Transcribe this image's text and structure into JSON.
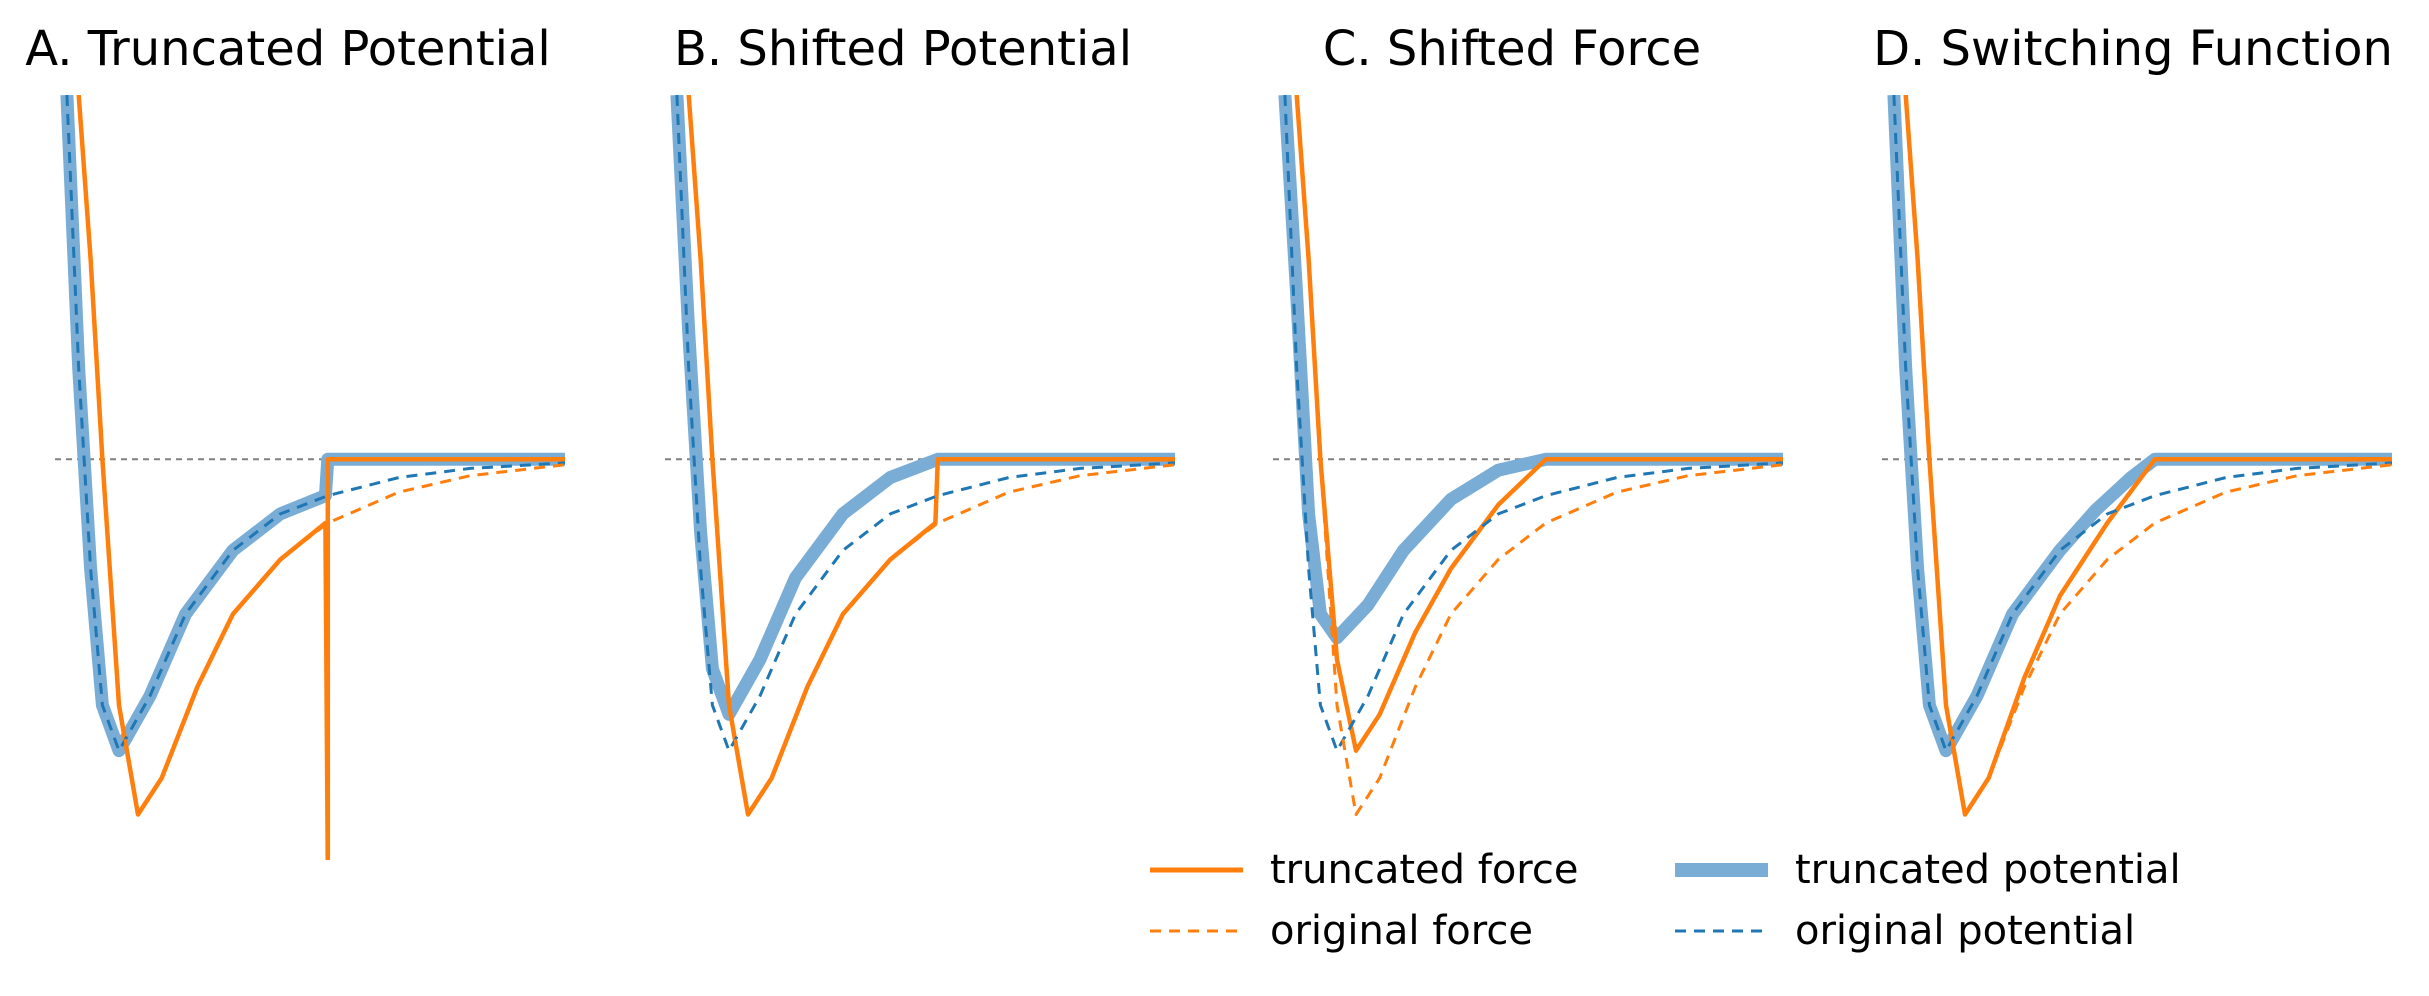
{
  "chart_data": [
    {
      "type": "line",
      "title": "A. Truncated Potential",
      "xlabel": "",
      "ylabel": "",
      "xlim": [
        0.85,
        3.0
      ],
      "ylim": [
        -2.2,
        2.0
      ],
      "cutoff": 2.0,
      "series": [
        {
          "name": "truncated force",
          "key": "truncated_force",
          "values": [
            [
              0.95,
              2.0
            ],
            [
              1.0,
              1.1
            ],
            [
              1.05,
              0.0
            ],
            [
              1.12,
              -1.35
            ],
            [
              1.2,
              -1.95
            ],
            [
              1.3,
              -1.75
            ],
            [
              1.45,
              -1.25
            ],
            [
              1.6,
              -0.85
            ],
            [
              1.8,
              -0.55
            ],
            [
              1.99,
              -0.35
            ],
            [
              2.0,
              -2.25
            ],
            [
              2.0,
              0.0
            ],
            [
              3.0,
              0.0
            ]
          ]
        },
        {
          "name": "original force",
          "key": "original_force",
          "values": [
            [
              0.95,
              2.0
            ],
            [
              1.0,
              1.1
            ],
            [
              1.05,
              0.0
            ],
            [
              1.12,
              -1.35
            ],
            [
              1.2,
              -1.95
            ],
            [
              1.3,
              -1.75
            ],
            [
              1.45,
              -1.25
            ],
            [
              1.6,
              -0.85
            ],
            [
              1.8,
              -0.55
            ],
            [
              2.0,
              -0.35
            ],
            [
              2.3,
              -0.18
            ],
            [
              2.6,
              -0.09
            ],
            [
              3.0,
              -0.03
            ]
          ]
        },
        {
          "name": "truncated potential",
          "key": "truncated_potential",
          "values": [
            [
              0.9,
              2.0
            ],
            [
              0.95,
              0.5
            ],
            [
              1.0,
              -0.6
            ],
            [
              1.05,
              -1.35
            ],
            [
              1.12,
              -1.6
            ],
            [
              1.25,
              -1.3
            ],
            [
              1.4,
              -0.85
            ],
            [
              1.6,
              -0.5
            ],
            [
              1.8,
              -0.3
            ],
            [
              1.99,
              -0.2
            ],
            [
              2.0,
              0.0
            ],
            [
              3.0,
              0.0
            ]
          ]
        },
        {
          "name": "original potential",
          "key": "original_potential",
          "values": [
            [
              0.9,
              2.0
            ],
            [
              0.95,
              0.5
            ],
            [
              1.0,
              -0.6
            ],
            [
              1.05,
              -1.35
            ],
            [
              1.12,
              -1.6
            ],
            [
              1.25,
              -1.3
            ],
            [
              1.4,
              -0.85
            ],
            [
              1.6,
              -0.5
            ],
            [
              1.8,
              -0.3
            ],
            [
              2.0,
              -0.2
            ],
            [
              2.3,
              -0.1
            ],
            [
              2.6,
              -0.05
            ],
            [
              3.0,
              -0.02
            ]
          ]
        }
      ]
    },
    {
      "type": "line",
      "title": "B. Shifted Potential",
      "xlabel": "",
      "ylabel": "",
      "xlim": [
        0.85,
        3.0
      ],
      "ylim": [
        -2.2,
        2.0
      ],
      "cutoff": 2.0,
      "series": [
        {
          "name": "truncated force",
          "key": "truncated_force",
          "values": [
            [
              0.95,
              2.0
            ],
            [
              1.0,
              1.1
            ],
            [
              1.05,
              0.0
            ],
            [
              1.12,
              -1.35
            ],
            [
              1.2,
              -1.95
            ],
            [
              1.3,
              -1.75
            ],
            [
              1.45,
              -1.25
            ],
            [
              1.6,
              -0.85
            ],
            [
              1.8,
              -0.55
            ],
            [
              1.99,
              -0.35
            ],
            [
              2.0,
              0.0
            ],
            [
              3.0,
              0.0
            ]
          ]
        },
        {
          "name": "original force",
          "key": "original_force",
          "values": [
            [
              0.95,
              2.0
            ],
            [
              1.0,
              1.1
            ],
            [
              1.05,
              0.0
            ],
            [
              1.12,
              -1.35
            ],
            [
              1.2,
              -1.95
            ],
            [
              1.3,
              -1.75
            ],
            [
              1.45,
              -1.25
            ],
            [
              1.6,
              -0.85
            ],
            [
              1.8,
              -0.55
            ],
            [
              2.0,
              -0.35
            ],
            [
              2.3,
              -0.18
            ],
            [
              2.6,
              -0.09
            ],
            [
              3.0,
              -0.03
            ]
          ]
        },
        {
          "name": "truncated potential",
          "key": "truncated_potential",
          "values": [
            [
              0.9,
              2.0
            ],
            [
              0.95,
              0.7
            ],
            [
              1.0,
              -0.4
            ],
            [
              1.05,
              -1.15
            ],
            [
              1.12,
              -1.4
            ],
            [
              1.25,
              -1.1
            ],
            [
              1.4,
              -0.65
            ],
            [
              1.6,
              -0.3
            ],
            [
              1.8,
              -0.1
            ],
            [
              2.0,
              0.0
            ],
            [
              3.0,
              0.0
            ]
          ]
        },
        {
          "name": "original potential",
          "key": "original_potential",
          "values": [
            [
              0.9,
              2.0
            ],
            [
              0.95,
              0.5
            ],
            [
              1.0,
              -0.6
            ],
            [
              1.05,
              -1.35
            ],
            [
              1.12,
              -1.6
            ],
            [
              1.25,
              -1.3
            ],
            [
              1.4,
              -0.85
            ],
            [
              1.6,
              -0.5
            ],
            [
              1.8,
              -0.3
            ],
            [
              2.0,
              -0.2
            ],
            [
              2.3,
              -0.1
            ],
            [
              2.6,
              -0.05
            ],
            [
              3.0,
              -0.02
            ]
          ]
        }
      ]
    },
    {
      "type": "line",
      "title": "C. Shifted Force",
      "xlabel": "",
      "ylabel": "",
      "xlim": [
        0.85,
        3.0
      ],
      "ylim": [
        -2.2,
        2.0
      ],
      "cutoff": 2.0,
      "series": [
        {
          "name": "truncated force",
          "key": "truncated_force",
          "values": [
            [
              0.95,
              2.0
            ],
            [
              1.0,
              1.1
            ],
            [
              1.05,
              0.0
            ],
            [
              1.12,
              -1.1
            ],
            [
              1.2,
              -1.6
            ],
            [
              1.3,
              -1.4
            ],
            [
              1.45,
              -0.95
            ],
            [
              1.6,
              -0.6
            ],
            [
              1.8,
              -0.25
            ],
            [
              2.0,
              0.0
            ],
            [
              3.0,
              0.0
            ]
          ]
        },
        {
          "name": "original force",
          "key": "original_force",
          "values": [
            [
              0.95,
              2.0
            ],
            [
              1.0,
              1.1
            ],
            [
              1.05,
              0.0
            ],
            [
              1.12,
              -1.35
            ],
            [
              1.2,
              -1.95
            ],
            [
              1.3,
              -1.75
            ],
            [
              1.45,
              -1.25
            ],
            [
              1.6,
              -0.85
            ],
            [
              1.8,
              -0.55
            ],
            [
              2.0,
              -0.35
            ],
            [
              2.3,
              -0.18
            ],
            [
              2.6,
              -0.09
            ],
            [
              3.0,
              -0.03
            ]
          ]
        },
        {
          "name": "truncated potential",
          "key": "truncated_potential",
          "values": [
            [
              0.9,
              2.0
            ],
            [
              0.95,
              0.9
            ],
            [
              1.0,
              -0.3
            ],
            [
              1.05,
              -0.85
            ],
            [
              1.12,
              -0.98
            ],
            [
              1.25,
              -0.8
            ],
            [
              1.4,
              -0.5
            ],
            [
              1.6,
              -0.22
            ],
            [
              1.8,
              -0.06
            ],
            [
              2.0,
              0.0
            ],
            [
              3.0,
              0.0
            ]
          ]
        },
        {
          "name": "original potential",
          "key": "original_potential",
          "values": [
            [
              0.9,
              2.0
            ],
            [
              0.95,
              0.5
            ],
            [
              1.0,
              -0.6
            ],
            [
              1.05,
              -1.35
            ],
            [
              1.12,
              -1.6
            ],
            [
              1.25,
              -1.3
            ],
            [
              1.4,
              -0.85
            ],
            [
              1.6,
              -0.5
            ],
            [
              1.8,
              -0.3
            ],
            [
              2.0,
              -0.2
            ],
            [
              2.3,
              -0.1
            ],
            [
              2.6,
              -0.05
            ],
            [
              3.0,
              -0.02
            ]
          ]
        }
      ]
    },
    {
      "type": "line",
      "title": "D. Switching Function",
      "xlabel": "",
      "ylabel": "",
      "xlim": [
        0.85,
        3.0
      ],
      "ylim": [
        -2.2,
        2.0
      ],
      "cutoff": 2.0,
      "series": [
        {
          "name": "truncated force",
          "key": "truncated_force",
          "values": [
            [
              0.95,
              2.0
            ],
            [
              1.0,
              1.1
            ],
            [
              1.05,
              0.0
            ],
            [
              1.12,
              -1.35
            ],
            [
              1.2,
              -1.95
            ],
            [
              1.3,
              -1.75
            ],
            [
              1.45,
              -1.2
            ],
            [
              1.6,
              -0.75
            ],
            [
              1.8,
              -0.35
            ],
            [
              2.0,
              0.0
            ],
            [
              3.0,
              0.0
            ]
          ]
        },
        {
          "name": "original force",
          "key": "original_force",
          "values": [
            [
              0.95,
              2.0
            ],
            [
              1.0,
              1.1
            ],
            [
              1.05,
              0.0
            ],
            [
              1.12,
              -1.35
            ],
            [
              1.2,
              -1.95
            ],
            [
              1.3,
              -1.75
            ],
            [
              1.45,
              -1.25
            ],
            [
              1.6,
              -0.85
            ],
            [
              1.8,
              -0.55
            ],
            [
              2.0,
              -0.35
            ],
            [
              2.3,
              -0.18
            ],
            [
              2.6,
              -0.09
            ],
            [
              3.0,
              -0.03
            ]
          ]
        },
        {
          "name": "truncated potential",
          "key": "truncated_potential",
          "values": [
            [
              0.9,
              2.0
            ],
            [
              0.95,
              0.5
            ],
            [
              1.0,
              -0.6
            ],
            [
              1.05,
              -1.35
            ],
            [
              1.12,
              -1.6
            ],
            [
              1.25,
              -1.3
            ],
            [
              1.4,
              -0.85
            ],
            [
              1.6,
              -0.5
            ],
            [
              1.75,
              -0.28
            ],
            [
              1.9,
              -0.1
            ],
            [
              2.0,
              0.0
            ],
            [
              3.0,
              0.0
            ]
          ]
        },
        {
          "name": "original potential",
          "key": "original_potential",
          "values": [
            [
              0.9,
              2.0
            ],
            [
              0.95,
              0.5
            ],
            [
              1.0,
              -0.6
            ],
            [
              1.05,
              -1.35
            ],
            [
              1.12,
              -1.6
            ],
            [
              1.25,
              -1.3
            ],
            [
              1.4,
              -0.85
            ],
            [
              1.6,
              -0.5
            ],
            [
              1.8,
              -0.3
            ],
            [
              2.0,
              -0.2
            ],
            [
              2.3,
              -0.1
            ],
            [
              2.6,
              -0.05
            ],
            [
              3.0,
              -0.02
            ]
          ]
        }
      ]
    }
  ],
  "legend": {
    "placement": "bottom-right",
    "items": [
      {
        "key": "truncated_force",
        "label": "truncated force"
      },
      {
        "key": "truncated_potential",
        "label": "truncated potential"
      },
      {
        "key": "original_force",
        "label": "original force"
      },
      {
        "key": "original_potential",
        "label": "original potential"
      }
    ]
  },
  "colors": {
    "force": "#ff7f0e",
    "potential": "#1f77b4",
    "truncated_potential": "#7aadd6",
    "zero_line": "#808080"
  }
}
